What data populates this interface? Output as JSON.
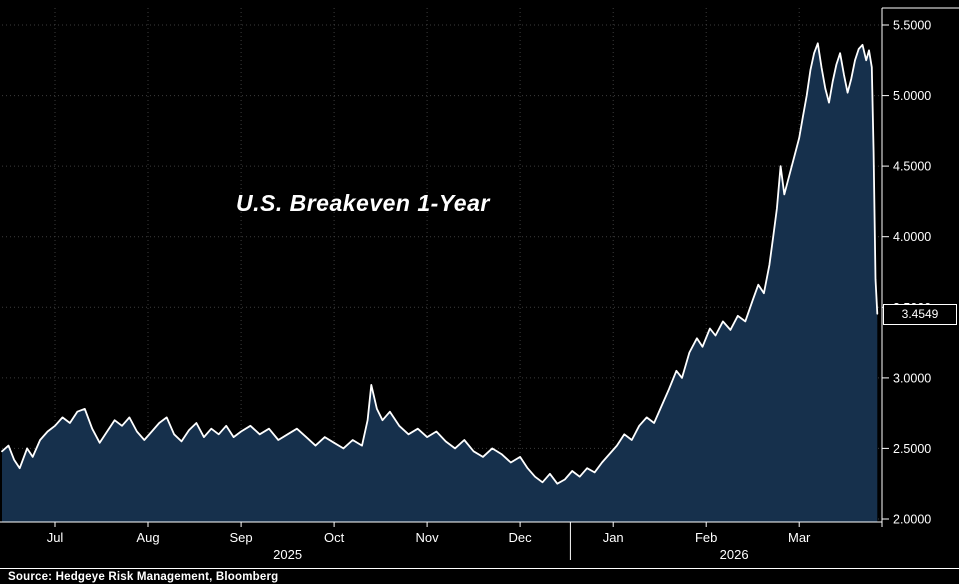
{
  "chart": {
    "title": "U.S. Breakeven 1-Year",
    "last_value_label": "3.4549",
    "source": "Source: Hedgeye Risk Management, Bloomberg",
    "colors": {
      "background": "#000000",
      "area_fill": "#16304c",
      "line": "#ffffff",
      "grid": "#3d3d3d",
      "axis": "#ffffff",
      "text": "#ffffff"
    }
  },
  "chart_data": {
    "type": "area",
    "title": "U.S. Breakeven 1-Year",
    "xlabel": "",
    "ylabel": "",
    "grid": "dotted",
    "legend": "none",
    "ylim": [
      2.0,
      5.5
    ],
    "yticks": [
      2.0,
      2.5,
      3.0,
      3.5,
      4.0,
      4.5,
      5.0,
      5.5
    ],
    "ytick_labels": [
      "2.0000",
      "2.5000",
      "3.0000",
      "3.5000",
      "4.0000",
      "4.5000",
      "5.0000",
      "5.5000"
    ],
    "x_unit": "months_since_Jul_2025",
    "xlim": [
      -0.57,
      8.89
    ],
    "xticks": [
      0,
      1,
      2,
      3,
      4,
      5,
      6,
      7,
      8
    ],
    "xtick_labels": [
      "Jul",
      "Aug",
      "Sep",
      "Oct",
      "Nov",
      "Dec",
      "Jan",
      "Feb",
      "Mar"
    ],
    "year_labels": [
      {
        "label": "2025",
        "x": 2.5
      },
      {
        "label": "2026",
        "x": 7.3
      }
    ],
    "year_divider_x": 5.54,
    "last_value": 3.4549,
    "points": [
      [
        -0.57,
        2.48
      ],
      [
        -0.5,
        2.52
      ],
      [
        -0.44,
        2.42
      ],
      [
        -0.38,
        2.36
      ],
      [
        -0.3,
        2.5
      ],
      [
        -0.24,
        2.44
      ],
      [
        -0.16,
        2.56
      ],
      [
        -0.08,
        2.62
      ],
      [
        0.0,
        2.66
      ],
      [
        0.08,
        2.72
      ],
      [
        0.16,
        2.68
      ],
      [
        0.24,
        2.76
      ],
      [
        0.32,
        2.78
      ],
      [
        0.4,
        2.64
      ],
      [
        0.48,
        2.54
      ],
      [
        0.56,
        2.62
      ],
      [
        0.64,
        2.7
      ],
      [
        0.72,
        2.66
      ],
      [
        0.8,
        2.72
      ],
      [
        0.88,
        2.62
      ],
      [
        0.96,
        2.56
      ],
      [
        1.04,
        2.62
      ],
      [
        1.12,
        2.68
      ],
      [
        1.2,
        2.72
      ],
      [
        1.28,
        2.6
      ],
      [
        1.36,
        2.55
      ],
      [
        1.44,
        2.63
      ],
      [
        1.52,
        2.68
      ],
      [
        1.6,
        2.58
      ],
      [
        1.68,
        2.64
      ],
      [
        1.76,
        2.6
      ],
      [
        1.84,
        2.66
      ],
      [
        1.92,
        2.58
      ],
      [
        2.0,
        2.62
      ],
      [
        2.1,
        2.66
      ],
      [
        2.2,
        2.6
      ],
      [
        2.3,
        2.64
      ],
      [
        2.4,
        2.56
      ],
      [
        2.5,
        2.6
      ],
      [
        2.6,
        2.64
      ],
      [
        2.7,
        2.58
      ],
      [
        2.8,
        2.52
      ],
      [
        2.9,
        2.58
      ],
      [
        3.0,
        2.54
      ],
      [
        3.1,
        2.5
      ],
      [
        3.2,
        2.56
      ],
      [
        3.3,
        2.52
      ],
      [
        3.36,
        2.7
      ],
      [
        3.4,
        2.95
      ],
      [
        3.46,
        2.78
      ],
      [
        3.52,
        2.7
      ],
      [
        3.6,
        2.76
      ],
      [
        3.7,
        2.66
      ],
      [
        3.8,
        2.6
      ],
      [
        3.9,
        2.64
      ],
      [
        4.0,
        2.58
      ],
      [
        4.1,
        2.62
      ],
      [
        4.2,
        2.55
      ],
      [
        4.3,
        2.5
      ],
      [
        4.4,
        2.56
      ],
      [
        4.5,
        2.48
      ],
      [
        4.6,
        2.44
      ],
      [
        4.7,
        2.5
      ],
      [
        4.8,
        2.46
      ],
      [
        4.9,
        2.4
      ],
      [
        5.0,
        2.44
      ],
      [
        5.08,
        2.36
      ],
      [
        5.16,
        2.3
      ],
      [
        5.24,
        2.26
      ],
      [
        5.32,
        2.32
      ],
      [
        5.4,
        2.25
      ],
      [
        5.48,
        2.28
      ],
      [
        5.56,
        2.34
      ],
      [
        5.64,
        2.3
      ],
      [
        5.72,
        2.36
      ],
      [
        5.8,
        2.33
      ],
      [
        5.88,
        2.4
      ],
      [
        5.96,
        2.46
      ],
      [
        6.04,
        2.52
      ],
      [
        6.12,
        2.6
      ],
      [
        6.2,
        2.56
      ],
      [
        6.28,
        2.66
      ],
      [
        6.36,
        2.72
      ],
      [
        6.44,
        2.68
      ],
      [
        6.52,
        2.8
      ],
      [
        6.6,
        2.92
      ],
      [
        6.68,
        3.05
      ],
      [
        6.74,
        3.0
      ],
      [
        6.82,
        3.18
      ],
      [
        6.9,
        3.28
      ],
      [
        6.96,
        3.22
      ],
      [
        7.04,
        3.35
      ],
      [
        7.1,
        3.3
      ],
      [
        7.18,
        3.4
      ],
      [
        7.26,
        3.34
      ],
      [
        7.34,
        3.44
      ],
      [
        7.42,
        3.4
      ],
      [
        7.5,
        3.55
      ],
      [
        7.56,
        3.66
      ],
      [
        7.62,
        3.6
      ],
      [
        7.68,
        3.8
      ],
      [
        7.72,
        4.0
      ],
      [
        7.76,
        4.2
      ],
      [
        7.8,
        4.5
      ],
      [
        7.84,
        4.3
      ],
      [
        7.9,
        4.45
      ],
      [
        7.96,
        4.6
      ],
      [
        8.0,
        4.7
      ],
      [
        8.04,
        4.85
      ],
      [
        8.08,
        5.0
      ],
      [
        8.12,
        5.18
      ],
      [
        8.16,
        5.3
      ],
      [
        8.2,
        5.37
      ],
      [
        8.24,
        5.2
      ],
      [
        8.28,
        5.05
      ],
      [
        8.32,
        4.95
      ],
      [
        8.36,
        5.1
      ],
      [
        8.4,
        5.22
      ],
      [
        8.44,
        5.3
      ],
      [
        8.48,
        5.15
      ],
      [
        8.52,
        5.02
      ],
      [
        8.56,
        5.12
      ],
      [
        8.6,
        5.25
      ],
      [
        8.64,
        5.33
      ],
      [
        8.68,
        5.36
      ],
      [
        8.72,
        5.25
      ],
      [
        8.75,
        5.32
      ],
      [
        8.78,
        5.2
      ],
      [
        8.8,
        4.6
      ],
      [
        8.82,
        3.7
      ],
      [
        8.84,
        3.4549
      ]
    ]
  }
}
